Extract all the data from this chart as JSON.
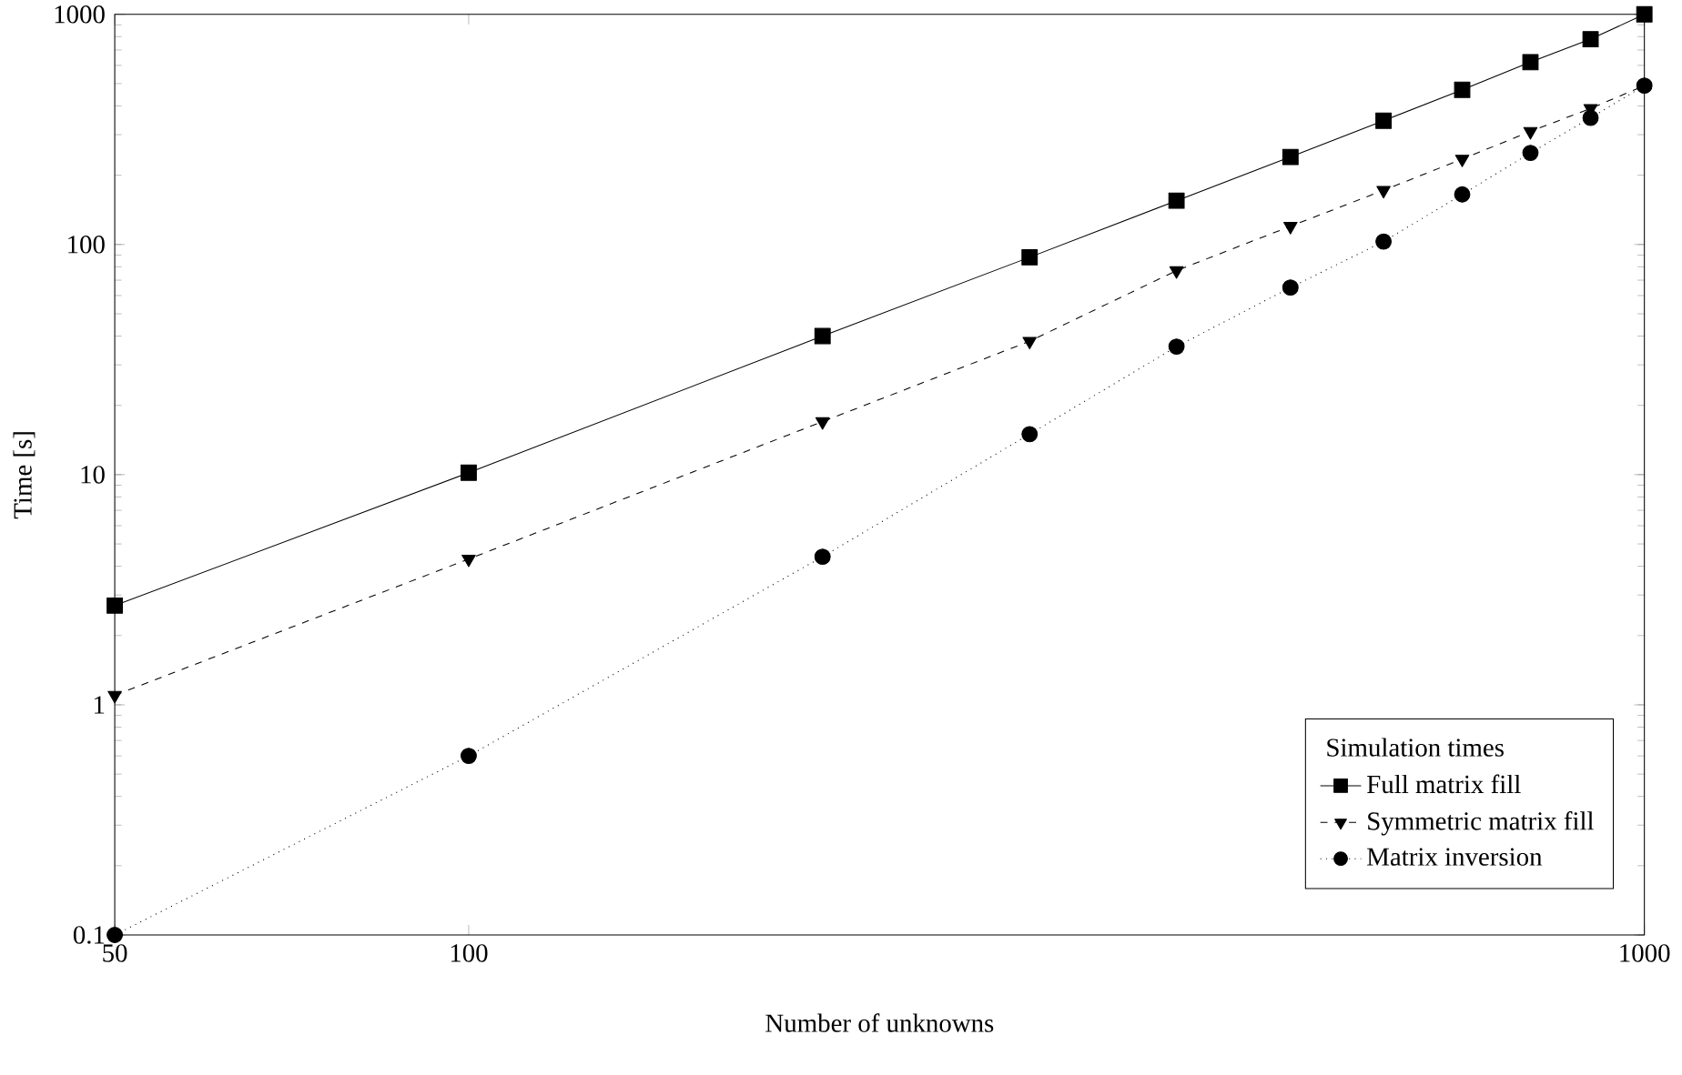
{
  "chart_data": {
    "type": "line",
    "xlabel": "Number of unknowns",
    "ylabel": "Time [s]",
    "log": "xy",
    "xlim": [
      50,
      1000
    ],
    "ylim": [
      0.1,
      1000
    ],
    "xticks": [
      50,
      100,
      1000
    ],
    "yticks": [
      0.1,
      1,
      10,
      100,
      1000
    ],
    "x": [
      50,
      100,
      200,
      300,
      400,
      500,
      600,
      700,
      800,
      900,
      1000
    ],
    "legend": "bottom right",
    "legend_title": "Simulation times",
    "grid": false,
    "series": [
      {
        "name": "Full matrix fill",
        "color": "#000000",
        "marker": "square",
        "line_style": "solid",
        "values": [
          2.7,
          10.2,
          40,
          88,
          155,
          240,
          345,
          470,
          620,
          780,
          1000
        ]
      },
      {
        "name": "Symmetric matrix fill",
        "color": "#000000",
        "marker": "triangle",
        "line_style": "dashed",
        "values": [
          1.1,
          4.3,
          17,
          38,
          77,
          120,
          172,
          235,
          310,
          390,
          490
        ]
      },
      {
        "name": "Matrix inversion",
        "color": "#000000",
        "marker": "circle",
        "line_style": "dotted",
        "values": [
          0.1,
          0.6,
          4.4,
          15,
          36,
          65,
          103,
          165,
          250,
          355,
          490
        ]
      }
    ]
  }
}
